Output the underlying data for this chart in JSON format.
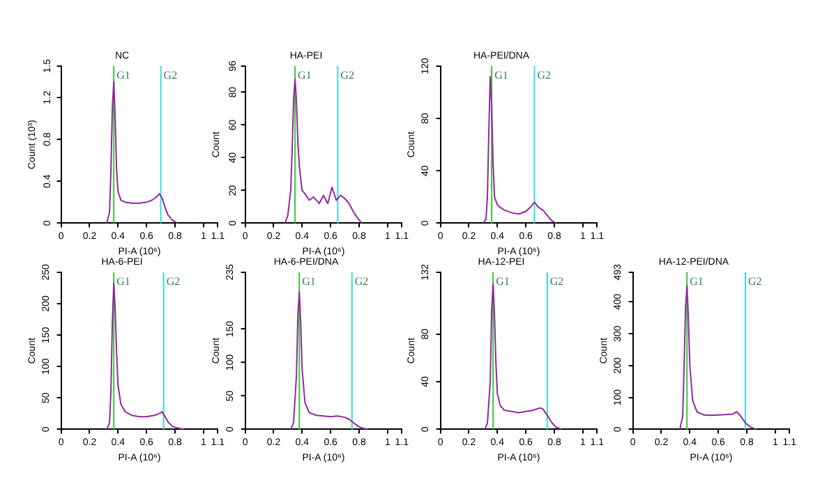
{
  "chart_data": [
    {
      "type": "line",
      "title": "NC",
      "xlabel": "PI-A (10⁶)",
      "ylabel": "Count (10³)",
      "xlim": [
        0,
        1.1
      ],
      "xticks": [
        0,
        0.2,
        0.4,
        0.6,
        0.8,
        1,
        1.1
      ],
      "ylim": [
        0,
        1.5
      ],
      "yticks": [
        0,
        0.4,
        0.8,
        1.2,
        1.5
      ],
      "grid": false,
      "legend": false,
      "marker": "none",
      "line_style": "solid",
      "series": [
        {
          "color": "#8e2a9c",
          "x": [
            0.32,
            0.34,
            0.35,
            0.36,
            0.37,
            0.38,
            0.39,
            0.4,
            0.42,
            0.45,
            0.5,
            0.55,
            0.6,
            0.64,
            0.67,
            0.69,
            0.71,
            0.73,
            0.75,
            0.78,
            0.82
          ],
          "values": [
            0,
            0.1,
            0.5,
            1.1,
            1.35,
            1.0,
            0.5,
            0.3,
            0.22,
            0.2,
            0.19,
            0.19,
            0.2,
            0.22,
            0.25,
            0.28,
            0.24,
            0.15,
            0.08,
            0.03,
            0
          ]
        }
      ],
      "ref_lines": [
        {
          "axis": "x",
          "value": 0.37,
          "label": "G1",
          "color": "#33cc33"
        },
        {
          "axis": "x",
          "value": 0.7,
          "label": "G2",
          "color": "#33dddd"
        }
      ]
    },
    {
      "type": "line",
      "title": "HA-PEI",
      "xlabel": "PI-A (10⁶)",
      "ylabel": "Count",
      "xlim": [
        0,
        1.1
      ],
      "xticks": [
        0,
        0.2,
        0.4,
        0.6,
        0.8,
        1,
        1.1
      ],
      "ylim": [
        0,
        96
      ],
      "yticks": [
        0,
        20,
        40,
        60,
        80,
        96
      ],
      "grid": false,
      "legend": false,
      "marker": "none",
      "line_style": "solid",
      "series": [
        {
          "color": "#8e2a9c",
          "x": [
            0.28,
            0.3,
            0.32,
            0.33,
            0.34,
            0.35,
            0.36,
            0.37,
            0.38,
            0.4,
            0.42,
            0.45,
            0.48,
            0.52,
            0.55,
            0.58,
            0.61,
            0.64,
            0.67,
            0.7,
            0.73,
            0.76,
            0.79,
            0.82
          ],
          "values": [
            0,
            5,
            20,
            45,
            75,
            88,
            75,
            50,
            35,
            20,
            18,
            14,
            16,
            12,
            17,
            12,
            22,
            14,
            17,
            15,
            12,
            7,
            3,
            0
          ]
        }
      ],
      "ref_lines": [
        {
          "axis": "x",
          "value": 0.35,
          "label": "G1",
          "color": "#33cc33"
        },
        {
          "axis": "x",
          "value": 0.65,
          "label": "G2",
          "color": "#33dddd"
        }
      ]
    },
    {
      "type": "line",
      "title": "HA-PEI/DNA",
      "xlabel": "PI-A (10⁶)",
      "ylabel": "Count",
      "xlim": [
        0,
        1.1
      ],
      "xticks": [
        0,
        0.2,
        0.4,
        0.6,
        0.8,
        1,
        1.1
      ],
      "ylim": [
        0,
        120
      ],
      "yticks": [
        0,
        40,
        80,
        120
      ],
      "grid": false,
      "legend": false,
      "marker": "none",
      "line_style": "solid",
      "series": [
        {
          "color": "#8e2a9c",
          "x": [
            0.3,
            0.32,
            0.33,
            0.34,
            0.35,
            0.36,
            0.37,
            0.38,
            0.4,
            0.42,
            0.45,
            0.5,
            0.55,
            0.6,
            0.63,
            0.66,
            0.69,
            0.72,
            0.75,
            0.78,
            0.81
          ],
          "values": [
            0,
            3,
            20,
            70,
            112,
            90,
            45,
            20,
            14,
            12,
            10,
            8,
            7,
            9,
            12,
            16,
            12,
            10,
            6,
            2,
            0
          ]
        }
      ],
      "ref_lines": [
        {
          "axis": "x",
          "value": 0.36,
          "label": "G1",
          "color": "#33cc33"
        },
        {
          "axis": "x",
          "value": 0.66,
          "label": "G2",
          "color": "#33dddd"
        }
      ]
    },
    {
      "type": "line",
      "title": "HA-6-PEI",
      "xlabel": "PI-A (10⁶)",
      "ylabel": "Count",
      "xlim": [
        0,
        1.1
      ],
      "xticks": [
        0,
        0.2,
        0.4,
        0.6,
        0.8,
        1,
        1.1
      ],
      "ylim": [
        0,
        250
      ],
      "yticks": [
        0,
        50,
        100,
        150,
        200,
        250
      ],
      "grid": false,
      "legend": false,
      "marker": "none",
      "line_style": "solid",
      "series": [
        {
          "color": "#8e2a9c",
          "x": [
            0.32,
            0.34,
            0.35,
            0.36,
            0.37,
            0.38,
            0.39,
            0.4,
            0.42,
            0.45,
            0.5,
            0.55,
            0.6,
            0.65,
            0.68,
            0.71,
            0.73,
            0.75,
            0.78,
            0.82,
            0.86
          ],
          "values": [
            0,
            10,
            60,
            170,
            232,
            190,
            120,
            70,
            40,
            28,
            22,
            20,
            20,
            22,
            24,
            28,
            20,
            12,
            5,
            2,
            0
          ]
        }
      ],
      "ref_lines": [
        {
          "axis": "x",
          "value": 0.37,
          "label": "G1",
          "color": "#33cc33"
        },
        {
          "axis": "x",
          "value": 0.72,
          "label": "G2",
          "color": "#33dddd"
        }
      ]
    },
    {
      "type": "line",
      "title": "HA-6-PEI/DNA",
      "xlabel": "PI-A (10⁶)",
      "ylabel": "Count",
      "xlim": [
        0,
        1.1
      ],
      "xticks": [
        0,
        0.2,
        0.4,
        0.6,
        0.8,
        1,
        1.1
      ],
      "ylim": [
        0,
        235
      ],
      "yticks": [
        0,
        50,
        100,
        150,
        235
      ],
      "grid": false,
      "legend": false,
      "marker": "none",
      "line_style": "solid",
      "series": [
        {
          "color": "#8e2a9c",
          "x": [
            0.32,
            0.34,
            0.36,
            0.37,
            0.38,
            0.39,
            0.4,
            0.42,
            0.45,
            0.5,
            0.55,
            0.6,
            0.65,
            0.7,
            0.73,
            0.76,
            0.79,
            0.82,
            0.86
          ],
          "values": [
            0,
            10,
            80,
            170,
            205,
            160,
            90,
            40,
            25,
            21,
            20,
            19,
            20,
            18,
            15,
            10,
            5,
            2,
            0
          ]
        }
      ],
      "ref_lines": [
        {
          "axis": "x",
          "value": 0.38,
          "label": "G1",
          "color": "#33cc33"
        },
        {
          "axis": "x",
          "value": 0.75,
          "label": "G2",
          "color": "#33dddd"
        }
      ]
    },
    {
      "type": "line",
      "title": "HA-12-PEI",
      "xlabel": "PI-A (10⁶)",
      "ylabel": "Count",
      "xlim": [
        0,
        1.1
      ],
      "xticks": [
        0,
        0.2,
        0.4,
        0.6,
        0.8,
        1,
        1.1
      ],
      "ylim": [
        0,
        132
      ],
      "yticks": [
        0,
        40,
        80,
        132
      ],
      "grid": false,
      "legend": false,
      "marker": "none",
      "line_style": "solid",
      "series": [
        {
          "color": "#8e2a9c",
          "x": [
            0.31,
            0.33,
            0.35,
            0.36,
            0.37,
            0.38,
            0.39,
            0.4,
            0.42,
            0.45,
            0.5,
            0.55,
            0.6,
            0.65,
            0.7,
            0.72,
            0.75,
            0.78,
            0.81,
            0.85
          ],
          "values": [
            0,
            5,
            40,
            100,
            122,
            95,
            55,
            30,
            20,
            16,
            15,
            14,
            15,
            16,
            18,
            17,
            12,
            6,
            2,
            0
          ]
        }
      ],
      "ref_lines": [
        {
          "axis": "x",
          "value": 0.37,
          "label": "G1",
          "color": "#33cc33"
        },
        {
          "axis": "x",
          "value": 0.75,
          "label": "G2",
          "color": "#33dddd"
        }
      ]
    },
    {
      "type": "line",
      "title": "HA-12-PEI/DNA",
      "xlabel": "PI-A (10⁶)",
      "ylabel": "Count",
      "xlim": [
        0,
        1.1
      ],
      "xticks": [
        0,
        0.2,
        0.4,
        0.6,
        0.8,
        1,
        1.1
      ],
      "ylim": [
        0,
        493
      ],
      "yticks": [
        0,
        100,
        200,
        300,
        400,
        493
      ],
      "grid": false,
      "legend": false,
      "marker": "none",
      "line_style": "solid",
      "series": [
        {
          "color": "#8e2a9c",
          "x": [
            0.33,
            0.35,
            0.36,
            0.37,
            0.38,
            0.39,
            0.4,
            0.42,
            0.45,
            0.5,
            0.55,
            0.6,
            0.65,
            0.7,
            0.73,
            0.76,
            0.79,
            0.83,
            0.87
          ],
          "values": [
            0,
            40,
            200,
            380,
            450,
            350,
            200,
            90,
            55,
            45,
            44,
            45,
            46,
            48,
            55,
            40,
            20,
            6,
            0
          ]
        }
      ],
      "ref_lines": [
        {
          "axis": "x",
          "value": 0.38,
          "label": "G1",
          "color": "#33cc33"
        },
        {
          "axis": "x",
          "value": 0.79,
          "label": "G2",
          "color": "#33dddd"
        }
      ]
    }
  ]
}
